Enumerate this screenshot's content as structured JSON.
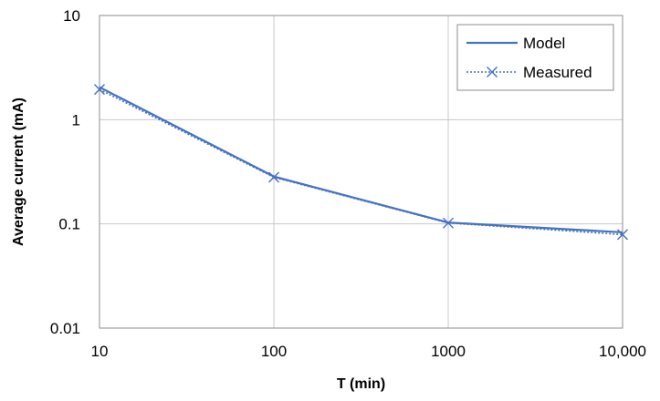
{
  "chart_data": {
    "type": "line",
    "xlabel": "T (min)",
    "ylabel": "Average current (mA)",
    "x_scale": "log",
    "y_scale": "log",
    "xlim": [
      10,
      10000
    ],
    "ylim": [
      0.01,
      10
    ],
    "x_ticks": [
      {
        "value": 10,
        "label": "10"
      },
      {
        "value": 100,
        "label": "100"
      },
      {
        "value": 1000,
        "label": "1000"
      },
      {
        "value": 10000,
        "label": "10,000"
      }
    ],
    "y_ticks": [
      {
        "value": 10,
        "label": "10"
      },
      {
        "value": 1,
        "label": "1"
      },
      {
        "value": 0.1,
        "label": "0.1"
      },
      {
        "value": 0.01,
        "label": "0.01"
      }
    ],
    "grid": true,
    "legend_position": "top-right",
    "series": [
      {
        "name": "Model",
        "style": "solid",
        "marker": "none",
        "color": "#4472C4",
        "x": [
          10,
          100,
          1000,
          10000
        ],
        "y": [
          2.05,
          0.285,
          0.103,
          0.083
        ]
      },
      {
        "name": "Measured",
        "style": "dotted",
        "marker": "x",
        "color": "#4472C4",
        "x": [
          10,
          100,
          1000,
          10000
        ],
        "y": [
          1.95,
          0.28,
          0.102,
          0.079
        ]
      }
    ]
  }
}
